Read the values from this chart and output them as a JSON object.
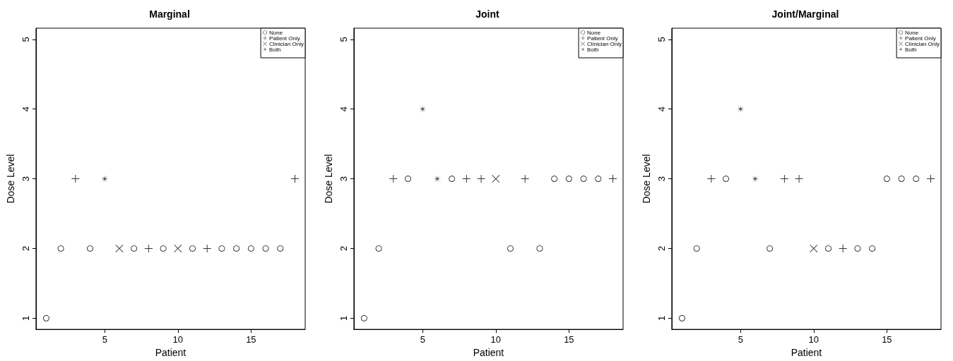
{
  "chart_data": [
    {
      "type": "scatter",
      "title": "Marginal",
      "xlabel": "Patient",
      "ylabel": "Dose Level",
      "xlim": [
        0.3,
        18.7
      ],
      "xticks": [
        5,
        10,
        15
      ],
      "ylim": [
        0.84,
        5.16
      ],
      "yticks": [
        1,
        2,
        3,
        4,
        5
      ],
      "legend": "top right",
      "grid": false,
      "series": [
        {
          "name": "None",
          "color": "#000000",
          "marker": "circle",
          "x": [
            1,
            2,
            4,
            7,
            9,
            11,
            13,
            14,
            15,
            16,
            17
          ],
          "values": [
            1,
            2,
            2,
            2,
            2,
            2,
            2,
            2,
            2,
            2,
            2
          ]
        },
        {
          "name": "Patient Only",
          "color": "#000000",
          "marker": "plus",
          "x": [
            3,
            8,
            12,
            18
          ],
          "values": [
            3,
            2,
            2,
            3
          ]
        },
        {
          "name": "Clinician Only",
          "color": "#000000",
          "marker": "cross",
          "x": [
            6,
            10
          ],
          "values": [
            2,
            2
          ]
        },
        {
          "name": "Both",
          "color": "#000000",
          "marker": "star",
          "x": [
            5
          ],
          "values": [
            3
          ]
        }
      ]
    },
    {
      "type": "scatter",
      "title": "Joint",
      "xlabel": "Patient",
      "ylabel": "Dose Level",
      "xlim": [
        0.3,
        18.7
      ],
      "xticks": [
        5,
        10,
        15
      ],
      "ylim": [
        0.84,
        5.16
      ],
      "yticks": [
        1,
        2,
        3,
        4,
        5
      ],
      "legend": "top right",
      "grid": false,
      "series": [
        {
          "name": "None",
          "color": "#000000",
          "marker": "circle",
          "x": [
            1,
            2,
            4,
            7,
            11,
            13,
            14,
            15,
            16,
            17
          ],
          "values": [
            1,
            2,
            3,
            3,
            2,
            2,
            3,
            3,
            3,
            3
          ]
        },
        {
          "name": "Patient Only",
          "color": "#000000",
          "marker": "plus",
          "x": [
            3,
            8,
            9,
            12,
            18
          ],
          "values": [
            3,
            3,
            3,
            3,
            3
          ]
        },
        {
          "name": "Clinician Only",
          "color": "#000000",
          "marker": "cross",
          "x": [
            10
          ],
          "values": [
            3
          ]
        },
        {
          "name": "Both",
          "color": "#000000",
          "marker": "star",
          "x": [
            5,
            6
          ],
          "values": [
            4,
            3
          ]
        }
      ]
    },
    {
      "type": "scatter",
      "title": "Joint/Marginal",
      "xlabel": "Patient",
      "ylabel": "Dose Level",
      "xlim": [
        0.3,
        18.7
      ],
      "xticks": [
        5,
        10,
        15
      ],
      "ylim": [
        0.84,
        5.16
      ],
      "yticks": [
        1,
        2,
        3,
        4,
        5
      ],
      "legend": "top right",
      "grid": false,
      "series": [
        {
          "name": "None",
          "color": "#000000",
          "marker": "circle",
          "x": [
            1,
            2,
            4,
            7,
            11,
            13,
            14,
            15,
            16,
            17
          ],
          "values": [
            1,
            2,
            3,
            2,
            2,
            2,
            2,
            3,
            3,
            3
          ]
        },
        {
          "name": "Patient Only",
          "color": "#000000",
          "marker": "plus",
          "x": [
            3,
            8,
            9,
            12,
            18
          ],
          "values": [
            3,
            3,
            3,
            2,
            3
          ]
        },
        {
          "name": "Clinician Only",
          "color": "#000000",
          "marker": "cross",
          "x": [
            10
          ],
          "values": [
            2
          ]
        },
        {
          "name": "Both",
          "color": "#000000",
          "marker": "star",
          "x": [
            5,
            6
          ],
          "values": [
            4,
            3
          ]
        }
      ]
    }
  ]
}
